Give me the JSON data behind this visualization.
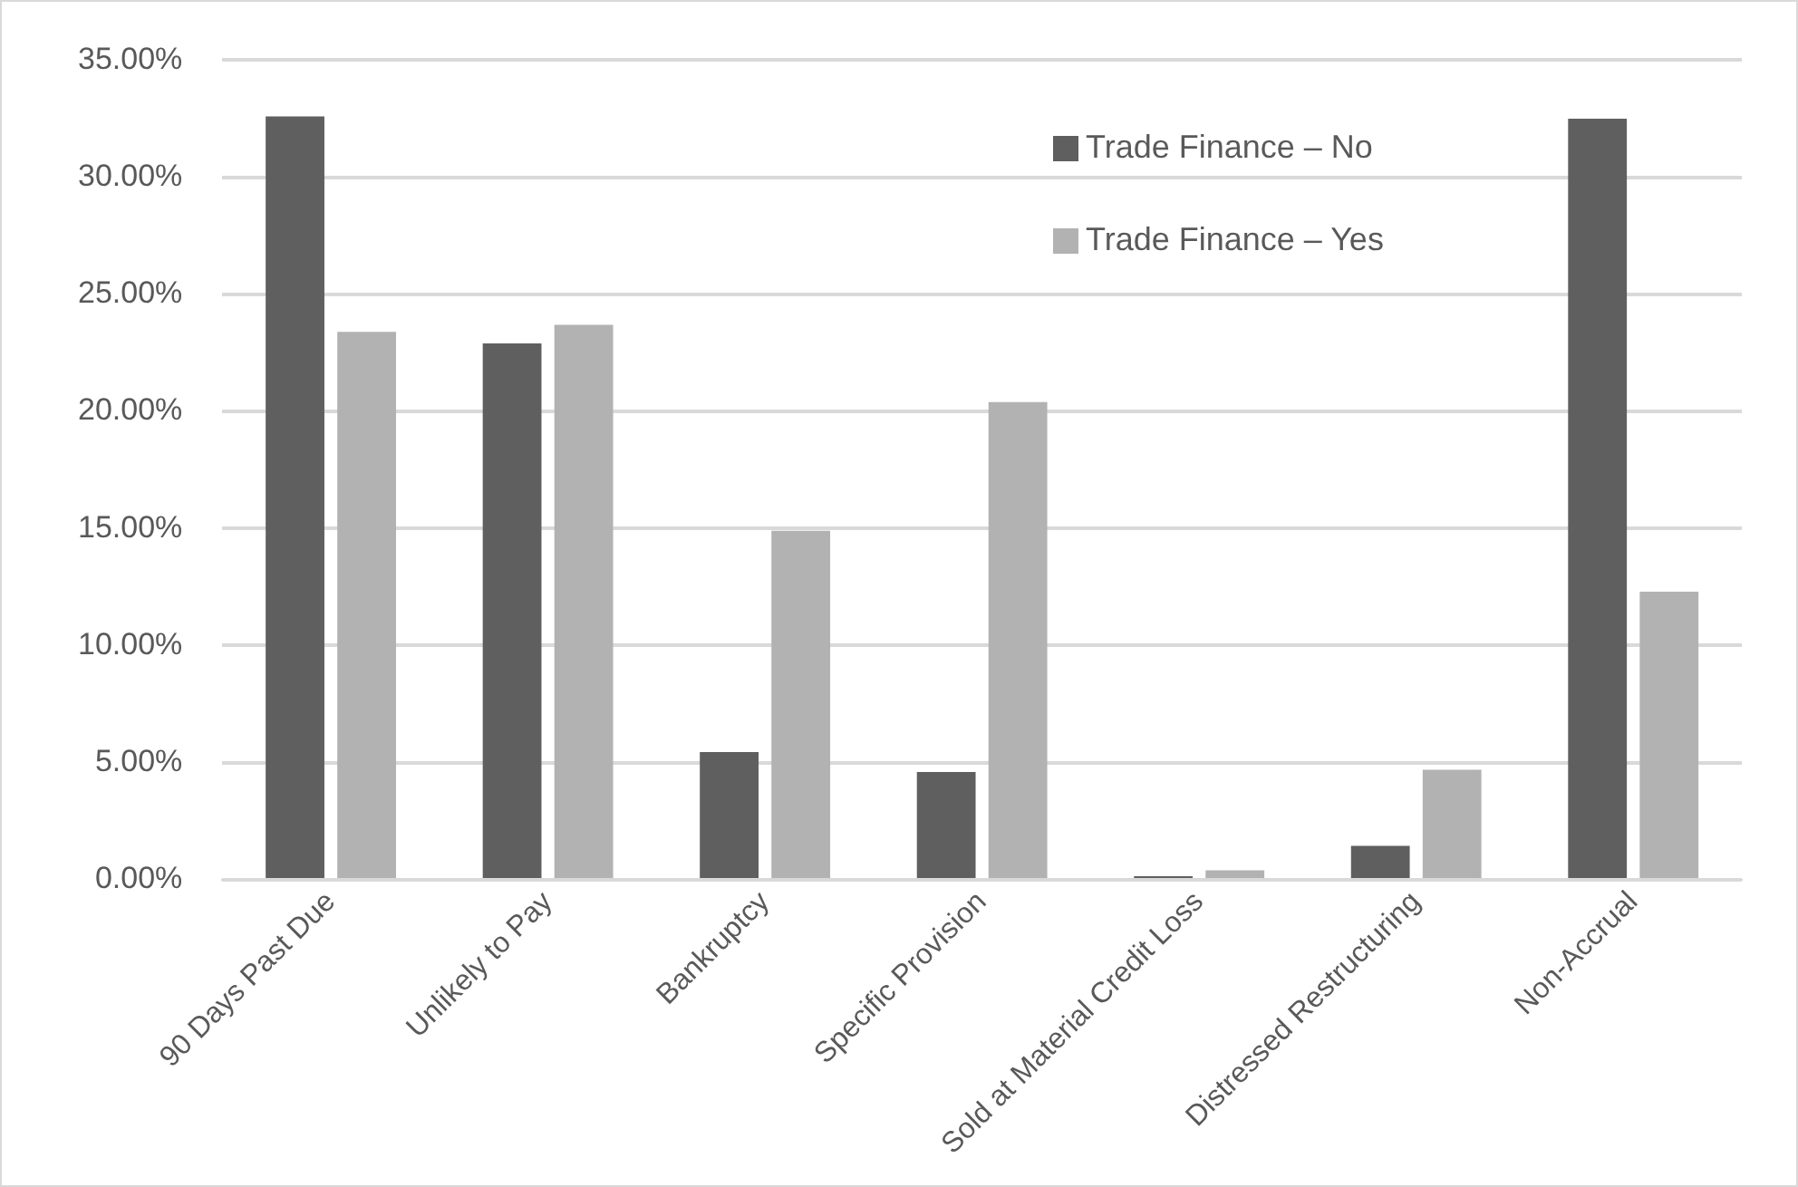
{
  "chart_data": {
    "type": "bar",
    "categories": [
      "90 Days Past Due",
      "Unlikely to Pay",
      "Bankruptcy",
      "Specific Provision",
      "Sold at Material Credit Loss",
      "Distressed Restructuring",
      "Non-Accrual"
    ],
    "series": [
      {
        "name": "Trade Finance – No",
        "color": "#5f5f5f",
        "values": [
          32.6,
          22.9,
          5.45,
          4.6,
          0.15,
          1.45,
          32.5
        ]
      },
      {
        "name": "Trade Finance – Yes",
        "color": "#b2b2b2",
        "values": [
          23.4,
          23.7,
          14.9,
          20.4,
          0.4,
          4.7,
          12.3
        ]
      }
    ],
    "ylim": [
      0,
      35
    ],
    "yticks": [
      {
        "value": 0,
        "label": "0.00%"
      },
      {
        "value": 5,
        "label": "5.00%"
      },
      {
        "value": 10,
        "label": "10.00%"
      },
      {
        "value": 15,
        "label": "15.00%"
      },
      {
        "value": 20,
        "label": "20.00%"
      },
      {
        "value": 25,
        "label": "25.00%"
      },
      {
        "value": 30,
        "label": "30.00%"
      },
      {
        "value": 35,
        "label": "35.00%"
      }
    ],
    "grid": "y",
    "legend": "top right"
  }
}
